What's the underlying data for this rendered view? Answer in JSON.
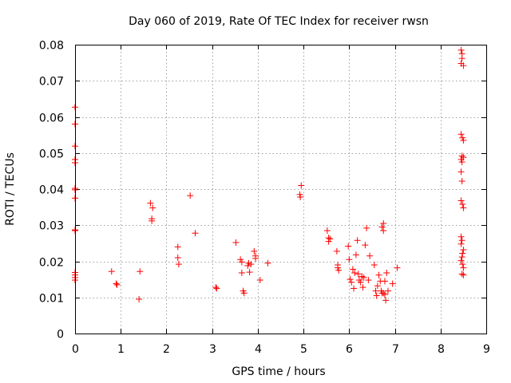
{
  "chart_data": {
    "type": "scatter",
    "title": "Day 060 of 2019, Rate Of TEC Index for receiver rwsn",
    "xlabel": "GPS time / hours",
    "ylabel": "ROTI / TECUs",
    "xlim": [
      0,
      9
    ],
    "ylim": [
      0,
      0.08
    ],
    "xticks": [
      "0",
      "1",
      "2",
      "3",
      "4",
      "5",
      "6",
      "7",
      "8",
      "9"
    ],
    "yticks": [
      "0",
      "0.01",
      "0.02",
      "0.03",
      "0.04",
      "0.05",
      "0.06",
      "0.07",
      "0.08"
    ],
    "grid": true,
    "marker": "+",
    "color": "#ff0000",
    "series": [
      {
        "name": "ROTI",
        "points": [
          [
            0.0,
            0.0627
          ],
          [
            0.0,
            0.058
          ],
          [
            0.0,
            0.0519
          ],
          [
            0.0,
            0.0482
          ],
          [
            0.0,
            0.0473
          ],
          [
            0.0,
            0.0402
          ],
          [
            0.0,
            0.0398
          ],
          [
            0.0,
            0.0375
          ],
          [
            0.0,
            0.0287
          ],
          [
            0.0,
            0.0285
          ],
          [
            0.0,
            0.0169
          ],
          [
            0.0,
            0.0162
          ],
          [
            0.0,
            0.0155
          ],
          [
            0.0,
            0.0148
          ],
          [
            0.8,
            0.0172
          ],
          [
            0.9,
            0.0138
          ],
          [
            0.92,
            0.0135
          ],
          [
            1.4,
            0.0095
          ],
          [
            1.42,
            0.0172
          ],
          [
            1.65,
            0.0361
          ],
          [
            1.68,
            0.0318
          ],
          [
            1.7,
            0.0348
          ],
          [
            1.68,
            0.0312
          ],
          [
            2.25,
            0.024
          ],
          [
            2.25,
            0.021
          ],
          [
            2.27,
            0.0192
          ],
          [
            2.52,
            0.0382
          ],
          [
            2.63,
            0.0278
          ],
          [
            3.08,
            0.0128
          ],
          [
            3.1,
            0.0125
          ],
          [
            3.52,
            0.0252
          ],
          [
            3.62,
            0.0205
          ],
          [
            3.65,
            0.0198
          ],
          [
            3.65,
            0.0168
          ],
          [
            3.68,
            0.0118
          ],
          [
            3.7,
            0.0112
          ],
          [
            3.78,
            0.0188
          ],
          [
            3.8,
            0.0195
          ],
          [
            3.82,
            0.017
          ],
          [
            3.85,
            0.0192
          ],
          [
            3.92,
            0.0228
          ],
          [
            3.95,
            0.0215
          ],
          [
            3.95,
            0.0208
          ],
          [
            4.05,
            0.0148
          ],
          [
            4.22,
            0.0195
          ],
          [
            4.92,
            0.0385
          ],
          [
            4.95,
            0.041
          ],
          [
            4.93,
            0.0378
          ],
          [
            5.52,
            0.0285
          ],
          [
            5.55,
            0.0265
          ],
          [
            5.55,
            0.0255
          ],
          [
            5.58,
            0.0262
          ],
          [
            5.73,
            0.0228
          ],
          [
            5.75,
            0.019
          ],
          [
            5.75,
            0.0182
          ],
          [
            5.77,
            0.0175
          ],
          [
            5.98,
            0.0242
          ],
          [
            6.0,
            0.0205
          ],
          [
            6.02,
            0.015
          ],
          [
            6.05,
            0.0142
          ],
          [
            6.08,
            0.0178
          ],
          [
            6.1,
            0.0125
          ],
          [
            6.12,
            0.0168
          ],
          [
            6.15,
            0.0218
          ],
          [
            6.18,
            0.0258
          ],
          [
            6.2,
            0.0165
          ],
          [
            6.22,
            0.0148
          ],
          [
            6.25,
            0.0142
          ],
          [
            6.28,
            0.0158
          ],
          [
            6.3,
            0.0128
          ],
          [
            6.32,
            0.0155
          ],
          [
            6.35,
            0.0245
          ],
          [
            6.38,
            0.0292
          ],
          [
            6.42,
            0.0148
          ],
          [
            6.45,
            0.0215
          ],
          [
            6.55,
            0.019
          ],
          [
            6.58,
            0.0118
          ],
          [
            6.6,
            0.0105
          ],
          [
            6.62,
            0.0132
          ],
          [
            6.65,
            0.0162
          ],
          [
            6.68,
            0.0145
          ],
          [
            6.7,
            0.0118
          ],
          [
            6.72,
            0.0112
          ],
          [
            6.72,
            0.0295
          ],
          [
            6.75,
            0.0305
          ],
          [
            6.75,
            0.0285
          ],
          [
            6.75,
            0.0112
          ],
          [
            6.78,
            0.0108
          ],
          [
            6.78,
            0.0145
          ],
          [
            6.8,
            0.0092
          ],
          [
            6.82,
            0.0168
          ],
          [
            6.85,
            0.0118
          ],
          [
            6.95,
            0.0138
          ],
          [
            7.05,
            0.0182
          ],
          [
            8.45,
            0.0785
          ],
          [
            8.47,
            0.0775
          ],
          [
            8.47,
            0.0762
          ],
          [
            8.45,
            0.0748
          ],
          [
            8.5,
            0.0742
          ],
          [
            8.45,
            0.0552
          ],
          [
            8.48,
            0.0542
          ],
          [
            8.5,
            0.0535
          ],
          [
            8.47,
            0.0492
          ],
          [
            8.5,
            0.0488
          ],
          [
            8.45,
            0.0482
          ],
          [
            8.47,
            0.0475
          ],
          [
            8.45,
            0.0448
          ],
          [
            8.47,
            0.0422
          ],
          [
            8.45,
            0.0368
          ],
          [
            8.48,
            0.0358
          ],
          [
            8.5,
            0.0348
          ],
          [
            8.45,
            0.0268
          ],
          [
            8.47,
            0.0258
          ],
          [
            8.45,
            0.0248
          ],
          [
            8.5,
            0.0232
          ],
          [
            8.48,
            0.0222
          ],
          [
            8.47,
            0.0212
          ],
          [
            8.45,
            0.0202
          ],
          [
            8.48,
            0.0192
          ],
          [
            8.5,
            0.0182
          ],
          [
            8.47,
            0.0165
          ],
          [
            8.5,
            0.0162
          ]
        ]
      }
    ]
  }
}
